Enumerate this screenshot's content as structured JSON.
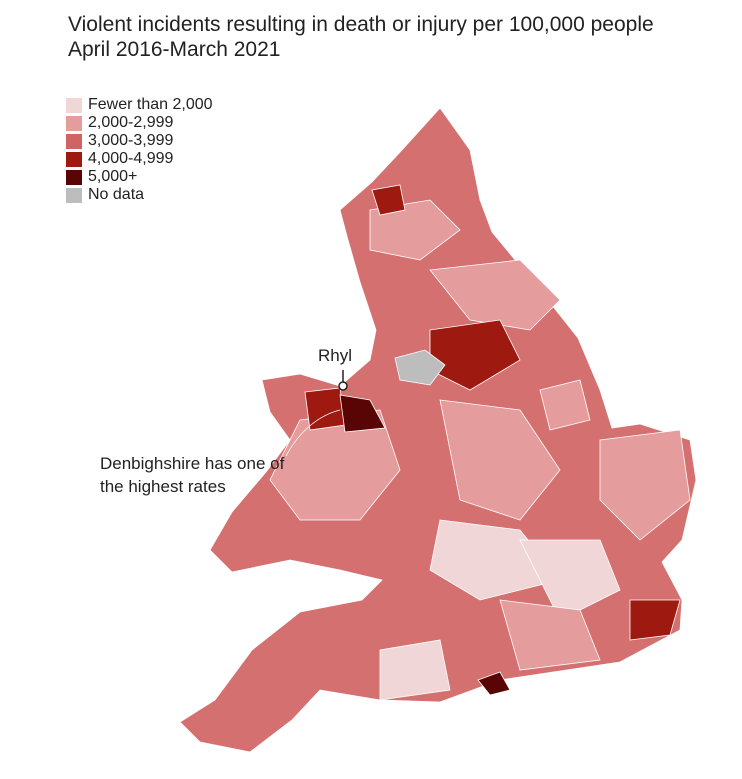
{
  "title": "Violent incidents resulting in death or injury per 100,000 people April 2016-March 2021",
  "legend": [
    {
      "label": "Fewer than 2,000",
      "color": "#f0d6d6"
    },
    {
      "label": "2,000-2,999",
      "color": "#e49c9c"
    },
    {
      "label": "3,000-3,999",
      "color": "#d06464"
    },
    {
      "label": "4,000-4,999",
      "color": "#9e1a10"
    },
    {
      "label": "5,000+",
      "color": "#5a0505"
    },
    {
      "label": "No data",
      "color": "#bdbdbd"
    }
  ],
  "annotations": {
    "place": "Rhyl",
    "note": "Denbighshire has one of the highest rates"
  }
}
